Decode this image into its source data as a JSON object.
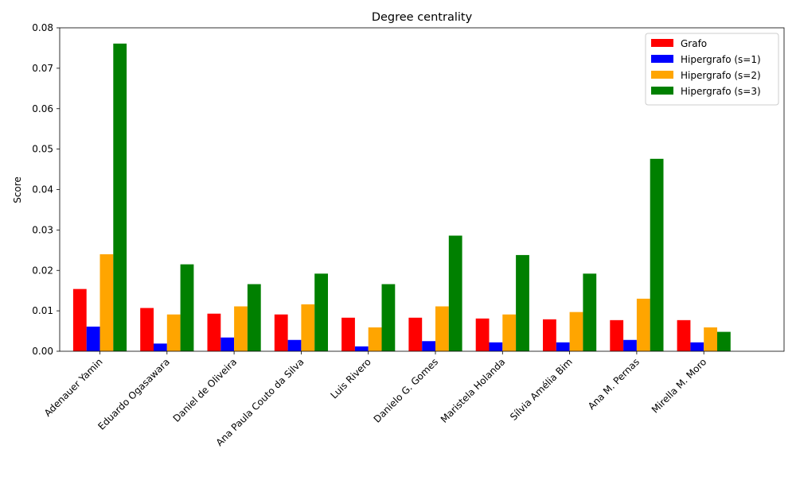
{
  "chart_data": {
    "type": "bar",
    "title": "Degree centrality",
    "xlabel": "",
    "ylabel": "Score",
    "ylim": [
      0,
      0.08
    ],
    "yticks": [
      "0.00",
      "0.01",
      "0.02",
      "0.03",
      "0.04",
      "0.05",
      "0.06",
      "0.07",
      "0.08"
    ],
    "grid": false,
    "legend_position": "top-right",
    "categories": [
      "Adenauer Yamin",
      "Eduardo Ogasawara",
      "Daniel de Oliveira",
      "Ana Paula Couto da Silva",
      "Luis Rivero",
      "Danielo G. Gomes",
      "Maristela Holanda",
      "Sílvia Amélia Bim",
      "Ana M. Pernas",
      "Mirella M. Moro"
    ],
    "series": [
      {
        "name": "Grafo",
        "color": "#ff0000",
        "values": [
          0.0154,
          0.0107,
          0.0093,
          0.0091,
          0.0083,
          0.0083,
          0.0081,
          0.0079,
          0.0077,
          0.0077
        ]
      },
      {
        "name": "Hipergrafo (s=1)",
        "color": "#0000ff",
        "values": [
          0.0061,
          0.0019,
          0.0034,
          0.0028,
          0.0012,
          0.0025,
          0.0022,
          0.0022,
          0.0028,
          0.0022
        ]
      },
      {
        "name": "Hipergrafo (s=2)",
        "color": "#ffa500",
        "values": [
          0.024,
          0.0091,
          0.0111,
          0.0116,
          0.0059,
          0.0111,
          0.0091,
          0.0097,
          0.013,
          0.0059
        ]
      },
      {
        "name": "Hipergrafo (s=3)",
        "color": "#008000",
        "values": [
          0.0761,
          0.0215,
          0.0166,
          0.0192,
          0.0166,
          0.0286,
          0.0238,
          0.0192,
          0.0476,
          0.0048
        ]
      }
    ]
  }
}
